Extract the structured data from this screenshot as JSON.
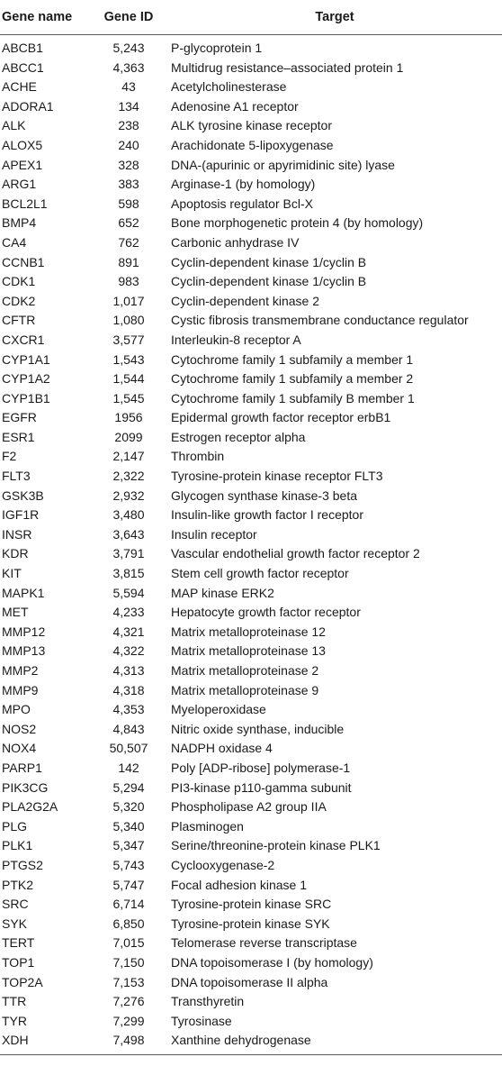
{
  "table": {
    "headers": [
      "Gene name",
      "Gene ID",
      "Target"
    ],
    "rows": [
      [
        "ABCB1",
        "5,243",
        "P-glycoprotein 1"
      ],
      [
        "ABCC1",
        "4,363",
        "Multidrug resistance–associated protein 1"
      ],
      [
        "ACHE",
        "43",
        "Acetylcholinesterase"
      ],
      [
        "ADORA1",
        "134",
        "Adenosine A1 receptor"
      ],
      [
        "ALK",
        "238",
        "ALK tyrosine kinase receptor"
      ],
      [
        "ALOX5",
        "240",
        "Arachidonate 5-lipoxygenase"
      ],
      [
        "APEX1",
        "328",
        "DNA-(apurinic or apyrimidinic site) lyase"
      ],
      [
        "ARG1",
        "383",
        "Arginase-1 (by homology)"
      ],
      [
        "BCL2L1",
        "598",
        "Apoptosis regulator Bcl-X"
      ],
      [
        "BMP4",
        "652",
        "Bone morphogenetic protein 4 (by homology)"
      ],
      [
        "CA4",
        "762",
        "Carbonic anhydrase IV"
      ],
      [
        "CCNB1",
        "891",
        "Cyclin-dependent kinase 1/cyclin B"
      ],
      [
        "CDK1",
        "983",
        "Cyclin-dependent kinase 1/cyclin B"
      ],
      [
        "CDK2",
        "1,017",
        "Cyclin-dependent kinase 2"
      ],
      [
        "CFTR",
        "1,080",
        "Cystic fibrosis transmembrane conductance regulator"
      ],
      [
        "CXCR1",
        "3,577",
        "Interleukin-8 receptor A"
      ],
      [
        "CYP1A1",
        "1,543",
        "Cytochrome family 1 subfamily a member 1"
      ],
      [
        "CYP1A2",
        "1,544",
        "Cytochrome family 1 subfamily a member 2"
      ],
      [
        "CYP1B1",
        "1,545",
        "Cytochrome family 1 subfamily B member 1"
      ],
      [
        "EGFR",
        "1956",
        "Epidermal growth factor receptor erbB1"
      ],
      [
        "ESR1",
        "2099",
        "Estrogen receptor alpha"
      ],
      [
        "F2",
        "2,147",
        "Thrombin"
      ],
      [
        "FLT3",
        "2,322",
        "Tyrosine-protein kinase receptor FLT3"
      ],
      [
        "GSK3B",
        "2,932",
        "Glycogen synthase kinase-3 beta"
      ],
      [
        "IGF1R",
        "3,480",
        "Insulin-like growth factor I receptor"
      ],
      [
        "INSR",
        "3,643",
        "Insulin receptor"
      ],
      [
        "KDR",
        "3,791",
        "Vascular endothelial growth factor receptor 2"
      ],
      [
        "KIT",
        "3,815",
        "Stem cell growth factor receptor"
      ],
      [
        "MAPK1",
        "5,594",
        "MAP kinase ERK2"
      ],
      [
        "MET",
        "4,233",
        "Hepatocyte growth factor receptor"
      ],
      [
        "MMP12",
        "4,321",
        "Matrix metalloproteinase 12"
      ],
      [
        "MMP13",
        "4,322",
        "Matrix metalloproteinase 13"
      ],
      [
        "MMP2",
        "4,313",
        "Matrix metalloproteinase 2"
      ],
      [
        "MMP9",
        "4,318",
        "Matrix metalloproteinase 9"
      ],
      [
        "MPO",
        "4,353",
        "Myeloperoxidase"
      ],
      [
        "NOS2",
        "4,843",
        "Nitric oxide synthase, inducible"
      ],
      [
        "NOX4",
        "50,507",
        "NADPH oxidase 4"
      ],
      [
        "PARP1",
        "142",
        "Poly [ADP-ribose] polymerase-1"
      ],
      [
        "PIK3CG",
        "5,294",
        "PI3-kinase p110-gamma subunit"
      ],
      [
        "PLA2G2A",
        "5,320",
        "Phospholipase A2 group IIA"
      ],
      [
        "PLG",
        "5,340",
        "Plasminogen"
      ],
      [
        "PLK1",
        "5,347",
        "Serine/threonine-protein kinase PLK1"
      ],
      [
        "PTGS2",
        "5,743",
        "Cyclooxygenase-2"
      ],
      [
        "PTK2",
        "5,747",
        "Focal adhesion kinase 1"
      ],
      [
        "SRC",
        "6,714",
        "Tyrosine-protein kinase SRC"
      ],
      [
        "SYK",
        "6,850",
        "Tyrosine-protein kinase SYK"
      ],
      [
        "TERT",
        "7,015",
        "Telomerase reverse transcriptase"
      ],
      [
        "TOP1",
        "7,150",
        "DNA topoisomerase I (by homology)"
      ],
      [
        "TOP2A",
        "7,153",
        "DNA topoisomerase II alpha"
      ],
      [
        "TTR",
        "7,276",
        "Transthyretin"
      ],
      [
        "TYR",
        "7,299",
        "Tyrosinase"
      ],
      [
        "XDH",
        "7,498",
        "Xanthine dehydrogenase"
      ]
    ]
  }
}
